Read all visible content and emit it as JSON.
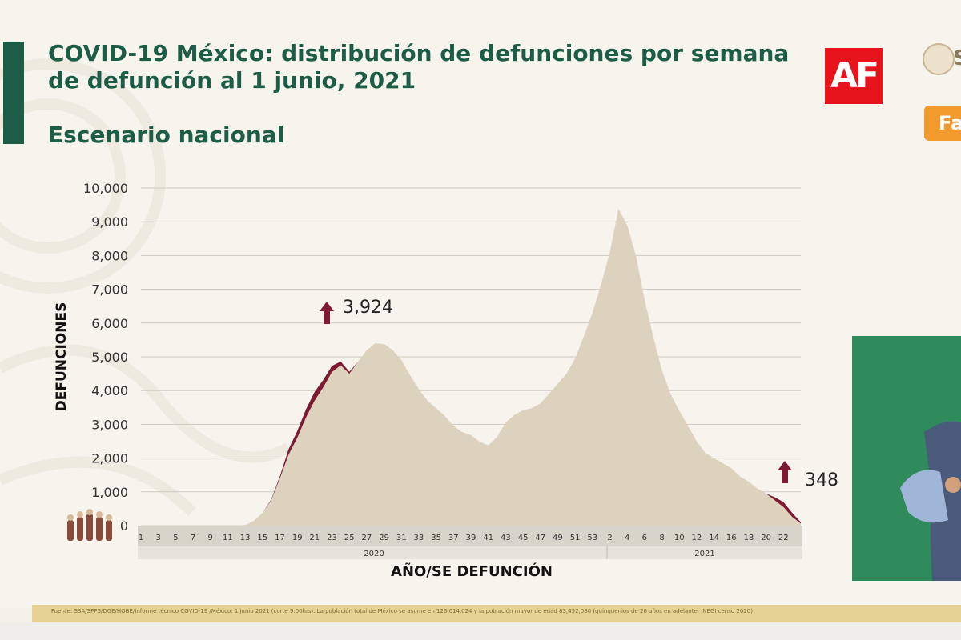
{
  "header": {
    "title_line1": "COVID-19 México: distribución de defunciones por semana",
    "title_line2": "de defunción al 1 junio, 2021",
    "subtitle": "Escenario nacional",
    "logo_text": "AF",
    "corner_letter": "S",
    "badge_text": "Fa"
  },
  "colors": {
    "title_green": "#1d5c46",
    "area_fill": "#ddd2be",
    "area_recent": "#7d1a32",
    "logo_red": "#e8141c",
    "badge_orange": "#f39a2c",
    "presenter_bg": "#2f8a5c"
  },
  "chart_data": {
    "type": "area",
    "title": "",
    "xlabel": "AÑO/SE DEFUNCIÓN",
    "ylabel": "DEFUNCIONES",
    "ylim": [
      0,
      10000
    ],
    "yticks": [
      "0",
      "1,000",
      "2,000",
      "3,000",
      "4,000",
      "5,000",
      "6,000",
      "7,000",
      "8,000",
      "9,000",
      "10,000"
    ],
    "grid": true,
    "x_tick_labels": [
      "1",
      "3",
      "5",
      "7",
      "9",
      "11",
      "13",
      "15",
      "17",
      "19",
      "21",
      "23",
      "25",
      "27",
      "29",
      "31",
      "33",
      "35",
      "37",
      "39",
      "41",
      "43",
      "45",
      "47",
      "49",
      "51",
      "53",
      "2",
      "4",
      "6",
      "8",
      "10",
      "12",
      "14",
      "16",
      "18",
      "20",
      "22"
    ],
    "year_labels": [
      "2020",
      "2021"
    ],
    "series": [
      {
        "values": [
          0,
          0,
          0,
          0,
          0,
          0,
          0,
          0,
          0,
          0,
          0,
          0,
          20,
          140,
          380,
          750,
          1400,
          2100,
          2600,
          3200,
          3700,
          4100,
          4550,
          4750,
          4500,
          4850,
          5200,
          5400,
          5380,
          5200,
          4900,
          4450,
          4050,
          3700,
          3480,
          3250,
          2950,
          2770,
          2680,
          2480,
          2380,
          2620,
          3050,
          3280,
          3420,
          3480,
          3620,
          3900,
          4200,
          4500,
          4950,
          5600,
          6300,
          7150,
          8100,
          9380,
          8900,
          8000,
          6700,
          5600,
          4600,
          3900,
          3400,
          2950,
          2500,
          2150,
          2000,
          1850,
          1700,
          1450,
          1300,
          1100,
          950,
          750,
          550,
          260,
          60
        ]
      }
    ],
    "recent_increment_values": [
      0,
      0,
      0,
      0,
      0,
      0,
      0,
      0,
      0,
      0,
      0,
      0,
      0,
      0,
      0,
      20,
      60,
      160,
      200,
      240,
      260,
      220,
      180,
      110,
      60,
      0,
      0,
      0,
      0,
      0,
      0,
      0,
      0,
      0,
      0,
      0,
      0,
      0,
      0,
      0,
      0,
      0,
      0,
      0,
      0,
      0,
      0,
      0,
      0,
      0,
      0,
      0,
      0,
      0,
      0,
      0,
      0,
      0,
      0,
      0,
      0,
      0,
      0,
      0,
      0,
      0,
      0,
      0,
      0,
      0,
      0,
      0,
      0,
      90,
      150,
      120,
      40
    ],
    "annotations": [
      {
        "text": "3,924",
        "x_week": 21,
        "year": "2020"
      },
      {
        "text": "348",
        "x_week": 21,
        "year": "2021"
      }
    ]
  },
  "footer": {
    "source": "Fuente: SSA/SPPS/DGE/HOBE/Informe técnico COVID-19 /México: 1 junio 2021 (corte 9:00hrs). La población total de México se asume en 126,014,024 y la población mayor de edad 83,452,080 (quinquenios de 20 años en adelante, INEGI censo 2020)"
  }
}
